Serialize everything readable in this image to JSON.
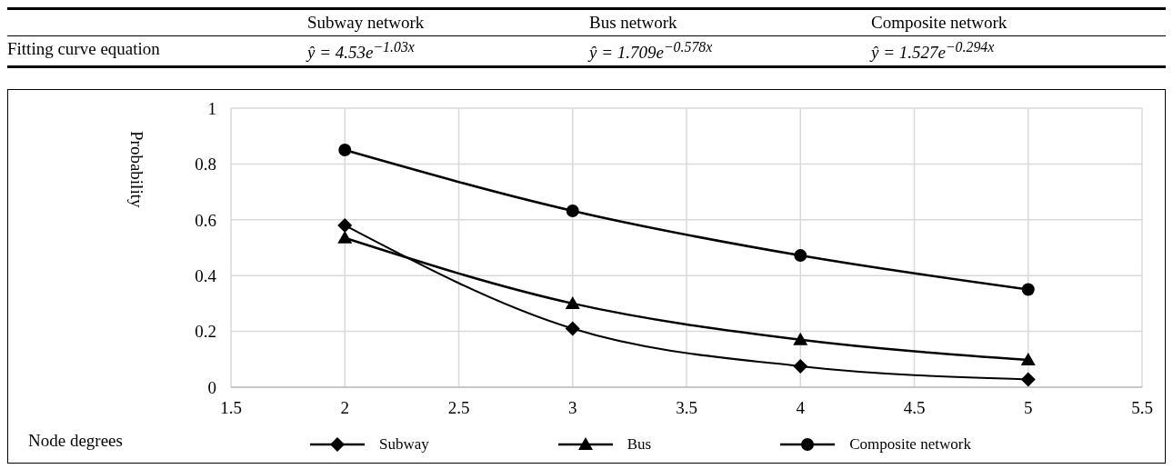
{
  "chart_data": {
    "type": "line",
    "annotations": [
      "Subway network",
      "Bus network",
      "Composite network",
      "Fitting curve equation",
      "ŷ = 4.53e$^{−1.03x}$",
      "ŷ = 1.709e$^{−0.578x}$",
      "ŷ = 1.527e$^{−0.294x}$"
    ],
    "xlabel": "Node degrees",
    "ylabel": "Probability",
    "x": [
      2,
      3,
      4,
      5
    ],
    "series": [
      {
        "name": "Subway",
        "color": "#000000",
        "marker": "diamond",
        "values": [
          0.58,
          0.21,
          0.075,
          0.028
        ]
      },
      {
        "name": "Bus",
        "color": "#000000",
        "marker": "triangle",
        "values": [
          0.535,
          0.3,
          0.17,
          0.098
        ]
      },
      {
        "name": "Composite network",
        "color": "#000000",
        "marker": "circle",
        "values": [
          0.85,
          0.632,
          0.472,
          0.35
        ]
      }
    ],
    "xlim": [
      1.5,
      5.5
    ],
    "xticks": [
      1.5,
      2,
      2.5,
      3,
      3.5,
      4,
      4.5,
      5,
      5.5
    ],
    "ylim": [
      0,
      1
    ],
    "yticks": [
      0,
      0.2,
      0.4,
      0.6,
      0.8,
      1
    ],
    "grid": true,
    "legend": "bottom",
    "line_style": "solid"
  }
}
